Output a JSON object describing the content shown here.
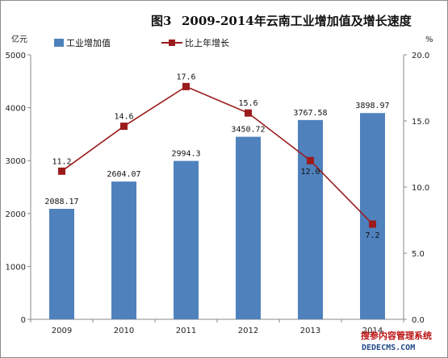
{
  "chart_data": {
    "type": "bar",
    "title_prefix": "图3",
    "title": "2009-2014年云南工业增加值及增长速度",
    "left_unit": "亿元",
    "right_unit": "%",
    "categories": [
      "2009",
      "2010",
      "2011",
      "2012",
      "2013",
      "2014"
    ],
    "left_axis": {
      "min": 0,
      "max": 5000,
      "ticks": [
        "0",
        "1000",
        "2000",
        "3000",
        "4000",
        "5000"
      ]
    },
    "right_axis": {
      "min": 0,
      "max": 20,
      "ticks": [
        "0.0",
        "5.0",
        "10.0",
        "15.0",
        "20.0"
      ]
    },
    "series": [
      {
        "name": "工业增加值",
        "kind": "bar",
        "axis": "left",
        "color": "#4f81bd",
        "values": [
          2088.17,
          2604.07,
          2994.3,
          3450.72,
          3767.58,
          3898.97
        ],
        "labels": [
          "2088.17",
          "2604.07",
          "2994.3",
          "3450.72",
          "3767.58",
          "3898.97"
        ]
      },
      {
        "name": "比上年增长",
        "kind": "line",
        "axis": "right",
        "color": "#9b1c1c",
        "values": [
          11.2,
          14.6,
          17.6,
          15.6,
          12.0,
          7.2
        ],
        "labels": [
          "11.2",
          "14.6",
          "17.6",
          "15.6",
          "12.0",
          "7.2"
        ]
      }
    ],
    "legend": {
      "placement": "top-left"
    },
    "grid": false
  },
  "watermark": {
    "line1": "搜参内容管理系统",
    "line2": "DEDECMS.COM"
  }
}
